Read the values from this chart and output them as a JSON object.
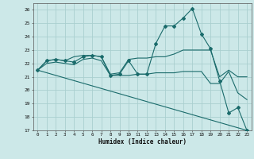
{
  "xlabel": "Humidex (Indice chaleur)",
  "bg_color": "#cce8e8",
  "grid_color": "#aacfcf",
  "line_color": "#1a6b6b",
  "xlim": [
    -0.5,
    23.5
  ],
  "ylim": [
    17,
    26.5
  ],
  "yticks": [
    17,
    18,
    19,
    20,
    21,
    22,
    23,
    24,
    25,
    26
  ],
  "xticks": [
    0,
    1,
    2,
    3,
    4,
    5,
    6,
    7,
    8,
    9,
    10,
    11,
    12,
    13,
    14,
    15,
    16,
    17,
    18,
    19,
    20,
    21,
    22,
    23
  ],
  "lines": [
    {
      "x": [
        0,
        1,
        2,
        3,
        4,
        5,
        6,
        7,
        8,
        9,
        10,
        11,
        12,
        13,
        14,
        15,
        16,
        17,
        18,
        19,
        20,
        21,
        22,
        23
      ],
      "y": [
        21.5,
        22.2,
        22.3,
        22.2,
        22.1,
        22.5,
        22.6,
        22.5,
        21.1,
        21.2,
        22.2,
        21.2,
        21.2,
        23.5,
        24.8,
        24.8,
        25.4,
        26.1,
        24.2,
        23.1,
        20.7,
        18.3,
        18.7,
        17.0
      ],
      "marker": true
    },
    {
      "x": [
        0,
        1,
        2,
        3,
        4,
        5,
        6,
        7,
        8,
        9,
        10,
        11,
        12,
        13,
        14,
        15,
        16,
        17,
        18,
        19,
        20,
        21,
        22,
        23
      ],
      "y": [
        21.5,
        22.2,
        22.3,
        22.2,
        22.5,
        22.6,
        22.6,
        22.5,
        21.2,
        21.3,
        22.3,
        22.4,
        22.4,
        22.5,
        22.5,
        22.7,
        23.0,
        23.0,
        23.0,
        23.0,
        21.0,
        21.5,
        21.0,
        21.0
      ],
      "marker": false
    },
    {
      "x": [
        0,
        1,
        2,
        3,
        4,
        5,
        6,
        7,
        8,
        9,
        10,
        11,
        12,
        13,
        14,
        15,
        16,
        17,
        18,
        19,
        20,
        21,
        22,
        23
      ],
      "y": [
        21.5,
        22.0,
        22.1,
        22.0,
        21.9,
        22.3,
        22.4,
        22.2,
        21.1,
        21.1,
        21.1,
        21.2,
        21.2,
        21.3,
        21.3,
        21.3,
        21.4,
        21.4,
        21.4,
        20.5,
        20.5,
        21.4,
        19.8,
        19.3
      ],
      "marker": false
    },
    {
      "x": [
        0,
        23
      ],
      "y": [
        21.5,
        17.0
      ],
      "marker": false
    }
  ]
}
